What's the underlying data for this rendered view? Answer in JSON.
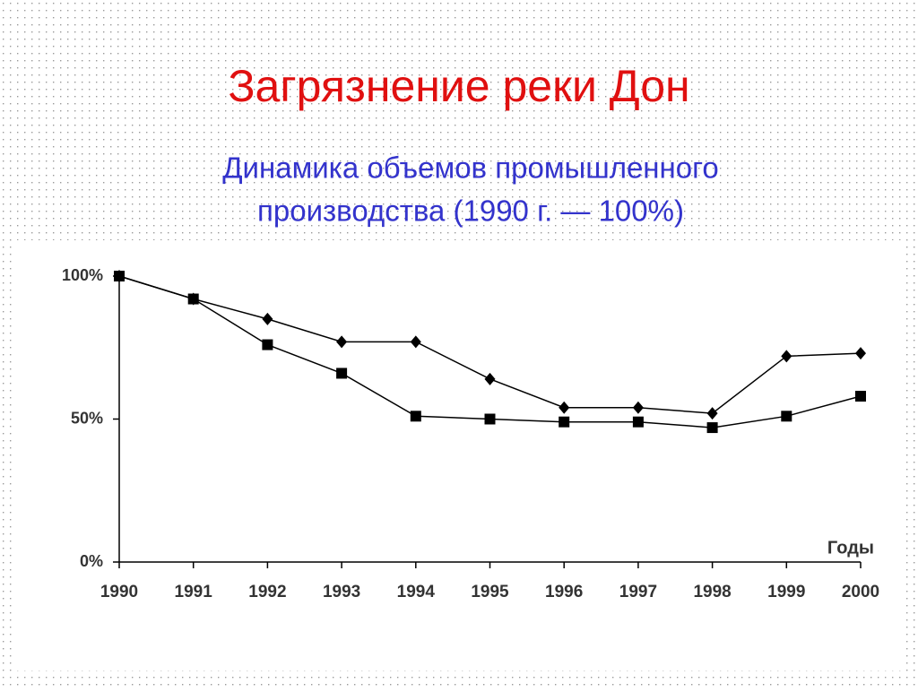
{
  "chart_data": {
    "type": "line",
    "title": "Загрязнение реки Дон",
    "subtitle_lines": [
      "Динамика объемов промышленного",
      "производства (1990 г. — 100%)"
    ],
    "x_label": "Годы",
    "x": [
      1990,
      1991,
      1992,
      1993,
      1994,
      1995,
      1996,
      1997,
      1998,
      1999,
      2000
    ],
    "xlim": [
      1990,
      2000
    ],
    "xticks": [
      1990,
      1991,
      1992,
      1993,
      1994,
      1995,
      1996,
      1997,
      1998,
      1999,
      2000
    ],
    "ylim": [
      0,
      100
    ],
    "yticks": [
      {
        "value": 0,
        "label": "0%"
      },
      {
        "value": 50,
        "label": "50%"
      },
      {
        "value": 100,
        "label": "100%"
      }
    ],
    "series": [
      {
        "color": "#000000",
        "marker": "diamond",
        "values": [
          100,
          92,
          85,
          77,
          77,
          64,
          54,
          54,
          52,
          72,
          73
        ]
      },
      {
        "color": "#000000",
        "marker": "square",
        "values": [
          100,
          92,
          76,
          66,
          51,
          50,
          49,
          49,
          47,
          51,
          58
        ]
      }
    ]
  }
}
